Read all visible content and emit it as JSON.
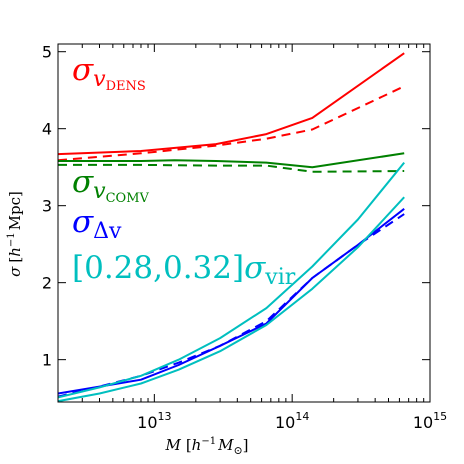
{
  "chart_data": {
    "type": "line",
    "xlabel": {
      "main": "M",
      "bracket_open": "[",
      "unit": "h",
      "sup": "−1",
      "unit2": "M",
      "sub": "⊙",
      "bracket_close": "]"
    },
    "ylabel": {
      "main": "σ",
      "bracket_open": "[",
      "unit": "h",
      "sup": "−1",
      "unit2": "Mpc",
      "bracket_close": "]"
    },
    "xscale": "log",
    "xlim": [
      2000000000000.0,
      1000000000000000.0
    ],
    "ylim": [
      0.45,
      5.1
    ],
    "xticks": [
      {
        "value": 10000000000000.0,
        "base": "10",
        "exp": "13"
      },
      {
        "value": 100000000000000.0,
        "base": "10",
        "exp": "14"
      },
      {
        "value": 1000000000000000.0,
        "base": "10",
        "exp": "15"
      }
    ],
    "yticks": [
      1,
      2,
      3,
      4,
      5
    ],
    "legend": [
      {
        "main": "σ",
        "sub": "v",
        "subsub": "DENS",
        "color": "#ff0000"
      },
      {
        "main": "σ",
        "sub": "v",
        "subsub": "COMV",
        "color": "#008000"
      },
      {
        "main": "σ",
        "sub": "Δv",
        "subsub": "",
        "color": "#0000ff"
      },
      {
        "prefix": "[0.28,0.32]",
        "main": "σ",
        "sub": "vir",
        "subsub": "",
        "color": "#00bfbf"
      }
    ],
    "series": [
      {
        "color": "#ff0000",
        "dash": "solid",
        "x": [
          2000000000000.0,
          8000000000000.0,
          28000000000000.0,
          65000000000000.0,
          140000000000000.0,
          650000000000000.0
        ],
        "y": [
          3.67,
          3.71,
          3.8,
          3.93,
          4.14,
          4.98
        ]
      },
      {
        "color": "#ff0000",
        "dash": "dashed",
        "x": [
          2000000000000.0,
          8000000000000.0,
          28000000000000.0,
          65000000000000.0,
          140000000000000.0,
          650000000000000.0
        ],
        "y": [
          3.59,
          3.68,
          3.78,
          3.87,
          3.99,
          4.55
        ]
      },
      {
        "color": "#008000",
        "dash": "solid",
        "x": [
          2000000000000.0,
          8000000000000.0,
          14000000000000.0,
          28000000000000.0,
          65000000000000.0,
          140000000000000.0,
          650000000000000.0
        ],
        "y": [
          3.58,
          3.58,
          3.59,
          3.58,
          3.56,
          3.5,
          3.68
        ]
      },
      {
        "color": "#008000",
        "dash": "dashed",
        "x": [
          2000000000000.0,
          8000000000000.0,
          28000000000000.0,
          65000000000000.0,
          140000000000000.0,
          650000000000000.0
        ],
        "y": [
          3.53,
          3.53,
          3.52,
          3.52,
          3.44,
          3.45
        ]
      },
      {
        "color": "#0000ff",
        "dash": "solid",
        "x": [
          2000000000000.0,
          4000000000000.0,
          8000000000000.0,
          15000000000000.0,
          30000000000000.0,
          65000000000000.0,
          140000000000000.0,
          300000000000000.0,
          650000000000000.0
        ],
        "y": [
          0.56,
          0.65,
          0.74,
          0.93,
          1.18,
          1.47,
          2.06,
          2.49,
          2.96
        ]
      },
      {
        "color": "#0000ff",
        "dash": "dashed",
        "x": [
          2000000000000.0,
          4000000000000.0,
          8000000000000.0,
          15000000000000.0,
          30000000000000.0,
          65000000000000.0,
          140000000000000.0,
          300000000000000.0,
          650000000000000.0
        ],
        "y": [
          0.52,
          0.65,
          0.79,
          0.96,
          1.18,
          1.5,
          2.06,
          2.49,
          2.89
        ]
      },
      {
        "color": "#00bfbf",
        "dash": "solid",
        "x": [
          2000000000000.0,
          4000000000000.0,
          8000000000000.0,
          15000000000000.0,
          30000000000000.0,
          65000000000000.0,
          140000000000000.0,
          300000000000000.0,
          650000000000000.0
        ],
        "y": [
          0.51,
          0.64,
          0.79,
          1.0,
          1.28,
          1.67,
          2.21,
          2.82,
          3.56
        ]
      },
      {
        "color": "#00bfbf",
        "dash": "solid",
        "x": [
          2000000000000.0,
          4000000000000.0,
          8000000000000.0,
          15000000000000.0,
          30000000000000.0,
          65000000000000.0,
          140000000000000.0,
          300000000000000.0,
          650000000000000.0
        ],
        "y": [
          0.46,
          0.56,
          0.69,
          0.87,
          1.11,
          1.45,
          1.92,
          2.46,
          3.11
        ]
      }
    ]
  }
}
